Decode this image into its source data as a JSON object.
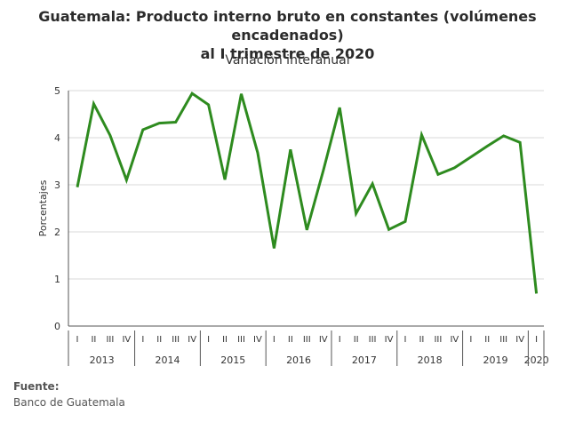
{
  "title_line1": "Guatemala: Producto interno bruto en constantes (volúmenes encadenados)",
  "title_line2": "al I trimestre de 2020",
  "source": {
    "label": "Fuente:",
    "text": "Banco de Guatemala"
  },
  "colors": {
    "line": "#2e8b1f",
    "grid": "#d9d9d9",
    "axis": "#555555"
  },
  "chart_data": {
    "type": "line",
    "title": "Guatemala: Producto interno bruto en constantes (volúmenes encadenados) al I trimestre de 2020",
    "subtitle": "Variación interanual",
    "xlabel": "",
    "ylabel": "Porcentajes",
    "ylim": [
      0,
      5
    ],
    "yticks": [
      0,
      1,
      2,
      3,
      4,
      5
    ],
    "grid": true,
    "legend": "none",
    "years": [
      {
        "label": "2013",
        "quarters": [
          "I",
          "II",
          "III",
          "IV"
        ]
      },
      {
        "label": "2014",
        "quarters": [
          "I",
          "II",
          "III",
          "IV"
        ]
      },
      {
        "label": "2015",
        "quarters": [
          "I",
          "II",
          "III",
          "IV"
        ]
      },
      {
        "label": "2016",
        "quarters": [
          "I",
          "II",
          "III",
          "IV"
        ]
      },
      {
        "label": "2017",
        "quarters": [
          "I",
          "II",
          "III",
          "IV"
        ]
      },
      {
        "label": "2018",
        "quarters": [
          "I",
          "II",
          "III",
          "IV"
        ]
      },
      {
        "label": "2019",
        "quarters": [
          "I",
          "II",
          "III",
          "IV"
        ]
      },
      {
        "label": "2020",
        "quarters": [
          "I"
        ]
      }
    ],
    "series": [
      {
        "values": [
          2.95,
          4.72,
          4.05,
          3.1,
          4.17,
          4.31,
          4.33,
          4.94,
          4.7,
          3.11,
          4.93,
          3.68,
          1.65,
          3.75,
          2.04,
          3.3,
          4.64,
          2.39,
          3.02,
          2.05,
          2.22,
          4.06,
          3.22,
          3.36,
          3.59,
          3.82,
          4.04,
          3.9,
          0.69
        ]
      }
    ]
  }
}
